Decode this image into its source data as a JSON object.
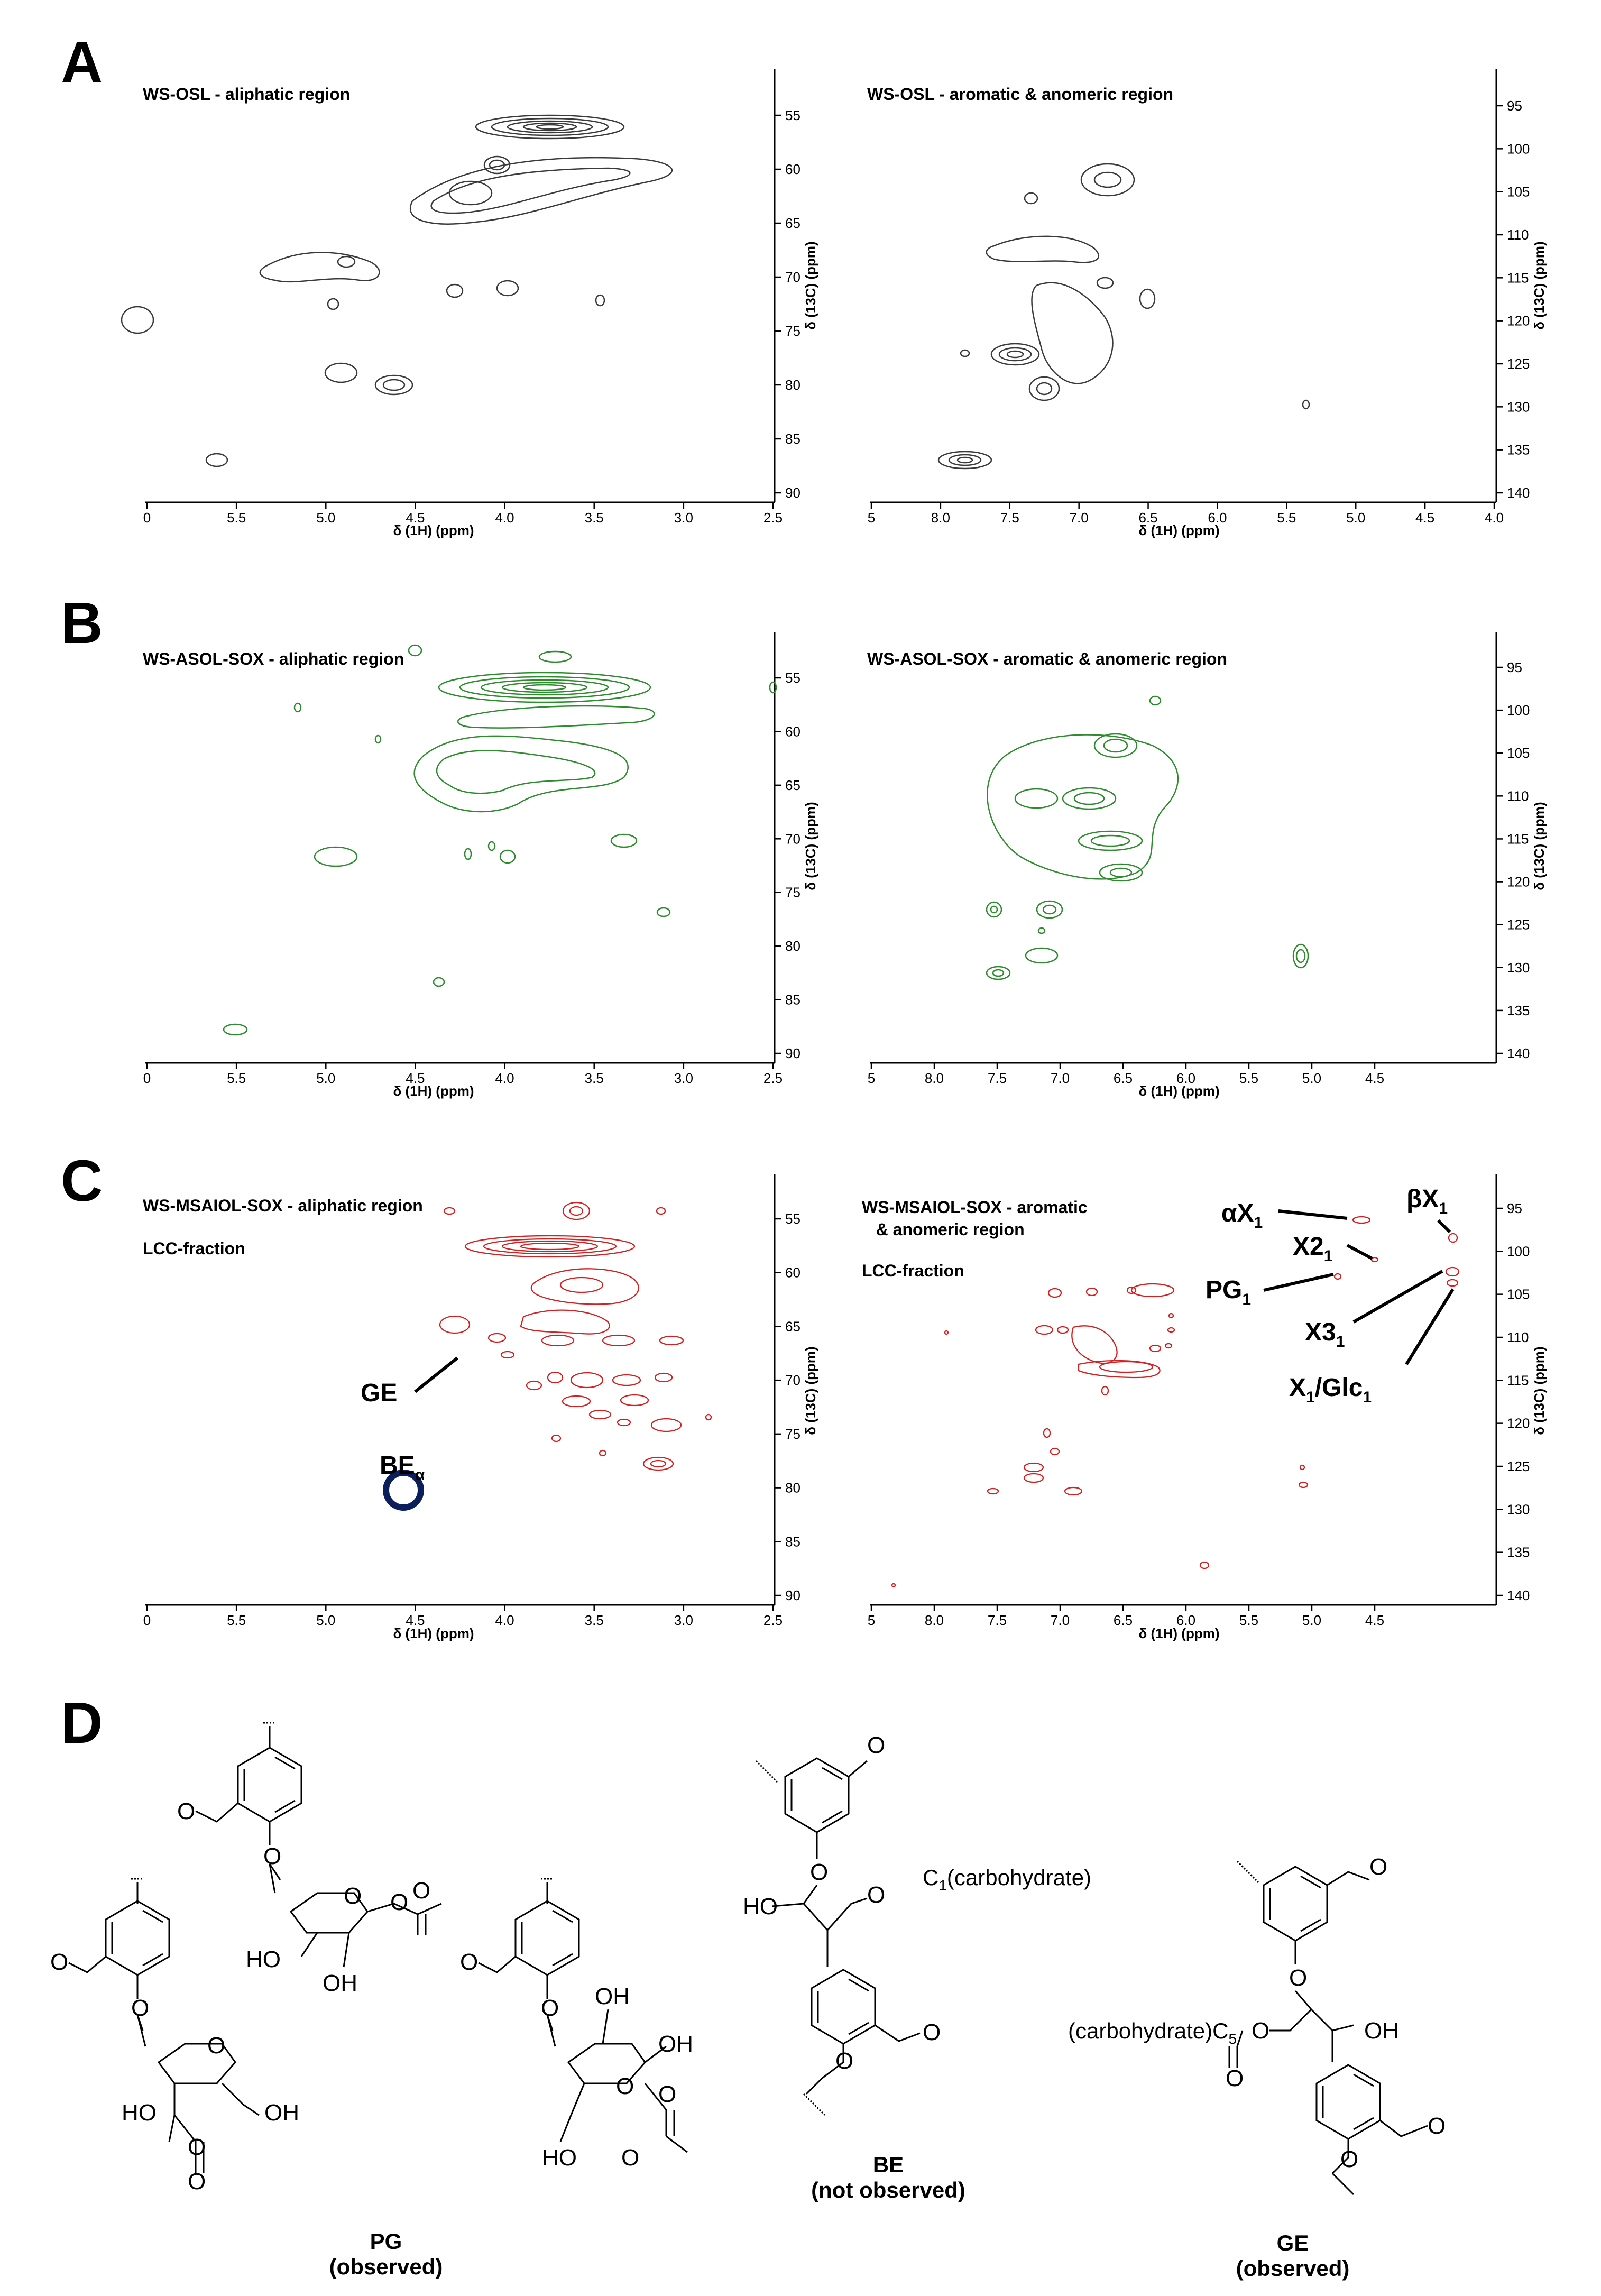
{
  "panels": [
    {
      "letter": "A",
      "left": {
        "title": "WS-OSL - aliphatic region",
        "subtitle": ""
      },
      "right": {
        "title": "WS-OSL - aromatic & anomeric region",
        "subtitle": ""
      },
      "color": "#3a3a3a"
    },
    {
      "letter": "B",
      "left": {
        "title": "WS-ASOL-SOX - aliphatic region",
        "subtitle": ""
      },
      "right": {
        "title": "WS-ASOL-SOX - aromatic & anomeric region",
        "subtitle": ""
      },
      "color": "#2e8b2e"
    },
    {
      "letter": "C",
      "left": {
        "title": "WS-MSAIOL-SOX - aliphatic region",
        "subtitle": "LCC-fraction"
      },
      "right": {
        "title": "WS-MSAIOL-SOX - aromatic\n   & anomeric region",
        "subtitle": "LCC-fraction"
      },
      "color": "#d42020"
    }
  ],
  "axes": {
    "xlabel": "δ (1H) (ppm)",
    "ylabel": "δ (13C) (ppm)",
    "aliphatic_x_ticks": [
      "0",
      "5.5",
      "5.0",
      "4.5",
      "4.0",
      "3.5",
      "3.0",
      "2.5"
    ],
    "aliphatic_y_ticks": [
      "55",
      "60",
      "65",
      "70",
      "75",
      "80",
      "85",
      "90"
    ],
    "aromatic_x_ticks_A": [
      "5",
      "8.0",
      "7.5",
      "7.0",
      "6.5",
      "6.0",
      "5.5",
      "5.0",
      "4.5",
      "4.0"
    ],
    "aromatic_x_ticks_B": [
      "5",
      "8.0",
      "7.5",
      "7.0",
      "6.5",
      "6.0",
      "5.5",
      "5.0",
      "4.5"
    ],
    "aromatic_x_ticks_C": [
      "5",
      "8.0",
      "7.5",
      "7.0",
      "6.5",
      "6.0",
      "5.5",
      "5.0",
      "4.5"
    ],
    "aromatic_y_ticks": [
      "95",
      "100",
      "105",
      "110",
      "115",
      "120",
      "125",
      "130",
      "135",
      "140"
    ]
  },
  "annotations_C_left": {
    "ge": "GE",
    "be": "BE",
    "be_sub": "α"
  },
  "annotations_C_right": {
    "ax1": "αX",
    "ax1_sub": "1",
    "bx1": "βX",
    "bx1_sub": "1",
    "x21": "X2",
    "x21_sub": "1",
    "pg1": "PG",
    "pg1_sub": "1",
    "x31": "X3",
    "x31_sub": "1",
    "x1glc1": "X",
    "x1glc1_sub": "1",
    "x1glc1_mid": "/Glc",
    "x1glc1_sub2": "1"
  },
  "panel_D": {
    "letter": "D",
    "pg_caption_1": "PG",
    "pg_caption_2": "(observed)",
    "be_caption_1": "BE",
    "be_caption_2": "(not observed)",
    "ge_caption_1": "GE",
    "ge_caption_2": "(observed)",
    "be_label_c1": "C",
    "be_label_c1_sub": "1",
    "be_label_c1_rest": "(carbohydrate)",
    "ge_label_c5_pre": "(carbohydrate)C",
    "ge_label_c5_sub": "5",
    "ho": "HO",
    "oh": "OH",
    "o": "O"
  }
}
